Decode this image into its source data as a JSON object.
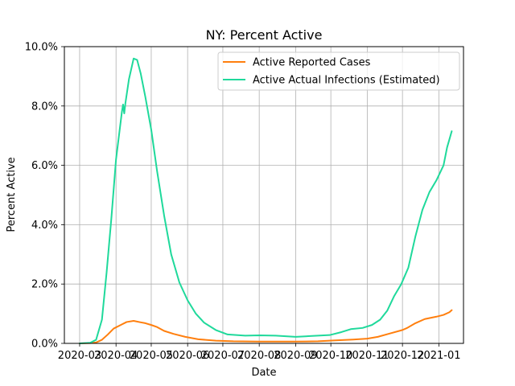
{
  "chart_data": {
    "type": "line",
    "title": "NY: Percent Active",
    "xlabel": "Date",
    "ylabel": "Percent Active",
    "ylim": [
      0,
      10
    ],
    "y_ticks": [
      "0.0%",
      "2.0%",
      "4.0%",
      "6.0%",
      "8.0%",
      "10.0%"
    ],
    "y_tick_values": [
      0,
      2,
      4,
      6,
      8,
      10
    ],
    "x_ticks": [
      "2020-03",
      "2020-04",
      "2020-05",
      "2020-06",
      "2020-07",
      "2020-08",
      "2020-09",
      "2020-10",
      "2020-11",
      "2020-12",
      "2021-01"
    ],
    "x_tick_dates": [
      "2020-03-01",
      "2020-04-01",
      "2020-05-01",
      "2020-06-01",
      "2020-07-01",
      "2020-08-01",
      "2020-09-01",
      "2020-10-01",
      "2020-11-01",
      "2020-12-01",
      "2021-01-01"
    ],
    "xlim": [
      "2020-02-17",
      "2021-01-22"
    ],
    "grid": true,
    "legend_position": "top-right",
    "series": [
      {
        "name": "Active Reported Cases",
        "color": "#ff7f0e",
        "points": [
          [
            "2020-03-01",
            0.0
          ],
          [
            "2020-03-10",
            0.01
          ],
          [
            "2020-03-15",
            0.03
          ],
          [
            "2020-03-20",
            0.12
          ],
          [
            "2020-03-25",
            0.3
          ],
          [
            "2020-03-30",
            0.5
          ],
          [
            "2020-04-05",
            0.62
          ],
          [
            "2020-04-10",
            0.72
          ],
          [
            "2020-04-16",
            0.76
          ],
          [
            "2020-04-22",
            0.71
          ],
          [
            "2020-04-26",
            0.68
          ],
          [
            "2020-05-01",
            0.62
          ],
          [
            "2020-05-06",
            0.55
          ],
          [
            "2020-05-12",
            0.42
          ],
          [
            "2020-05-20",
            0.32
          ],
          [
            "2020-05-30",
            0.22
          ],
          [
            "2020-06-10",
            0.14
          ],
          [
            "2020-06-25",
            0.09
          ],
          [
            "2020-07-10",
            0.07
          ],
          [
            "2020-08-01",
            0.06
          ],
          [
            "2020-09-01",
            0.06
          ],
          [
            "2020-09-20",
            0.07
          ],
          [
            "2020-10-05",
            0.1
          ],
          [
            "2020-10-20",
            0.13
          ],
          [
            "2020-11-01",
            0.16
          ],
          [
            "2020-11-10",
            0.22
          ],
          [
            "2020-11-20",
            0.33
          ],
          [
            "2020-12-01",
            0.45
          ],
          [
            "2020-12-05",
            0.52
          ],
          [
            "2020-12-12",
            0.68
          ],
          [
            "2020-12-20",
            0.82
          ],
          [
            "2020-12-30",
            0.9
          ],
          [
            "2021-01-05",
            0.96
          ],
          [
            "2021-01-10",
            1.05
          ],
          [
            "2021-01-12",
            1.12
          ]
        ]
      },
      {
        "name": "Active Actual Infections (Estimated)",
        "color": "#1fd99b",
        "points": [
          [
            "2020-03-01",
            0.0
          ],
          [
            "2020-03-10",
            0.02
          ],
          [
            "2020-03-15",
            0.12
          ],
          [
            "2020-03-20",
            0.8
          ],
          [
            "2020-03-24",
            2.4
          ],
          [
            "2020-03-28",
            4.2
          ],
          [
            "2020-04-01",
            6.2
          ],
          [
            "2020-04-06",
            7.8
          ],
          [
            "2020-04-07",
            8.05
          ],
          [
            "2020-04-08",
            7.75
          ],
          [
            "2020-04-09",
            8.1
          ],
          [
            "2020-04-12",
            8.9
          ],
          [
            "2020-04-16",
            9.6
          ],
          [
            "2020-04-19",
            9.55
          ],
          [
            "2020-04-22",
            9.1
          ],
          [
            "2020-04-26",
            8.3
          ],
          [
            "2020-05-01",
            7.2
          ],
          [
            "2020-05-06",
            5.8
          ],
          [
            "2020-05-12",
            4.3
          ],
          [
            "2020-05-18",
            3.0
          ],
          [
            "2020-05-25",
            2.05
          ],
          [
            "2020-06-01",
            1.45
          ],
          [
            "2020-06-08",
            1.0
          ],
          [
            "2020-06-15",
            0.7
          ],
          [
            "2020-06-25",
            0.45
          ],
          [
            "2020-07-05",
            0.3
          ],
          [
            "2020-07-20",
            0.26
          ],
          [
            "2020-08-01",
            0.27
          ],
          [
            "2020-08-15",
            0.26
          ],
          [
            "2020-09-01",
            0.22
          ],
          [
            "2020-09-15",
            0.25
          ],
          [
            "2020-09-30",
            0.28
          ],
          [
            "2020-10-10",
            0.38
          ],
          [
            "2020-10-18",
            0.48
          ],
          [
            "2020-10-28",
            0.52
          ],
          [
            "2020-11-05",
            0.62
          ],
          [
            "2020-11-12",
            0.8
          ],
          [
            "2020-11-18",
            1.1
          ],
          [
            "2020-11-24",
            1.6
          ],
          [
            "2020-11-30",
            2.0
          ],
          [
            "2020-12-06",
            2.55
          ],
          [
            "2020-12-12",
            3.6
          ],
          [
            "2020-12-18",
            4.5
          ],
          [
            "2020-12-24",
            5.1
          ],
          [
            "2020-12-30",
            5.5
          ],
          [
            "2021-01-05",
            6.0
          ],
          [
            "2021-01-08",
            6.6
          ],
          [
            "2021-01-12",
            7.15
          ]
        ]
      }
    ]
  }
}
